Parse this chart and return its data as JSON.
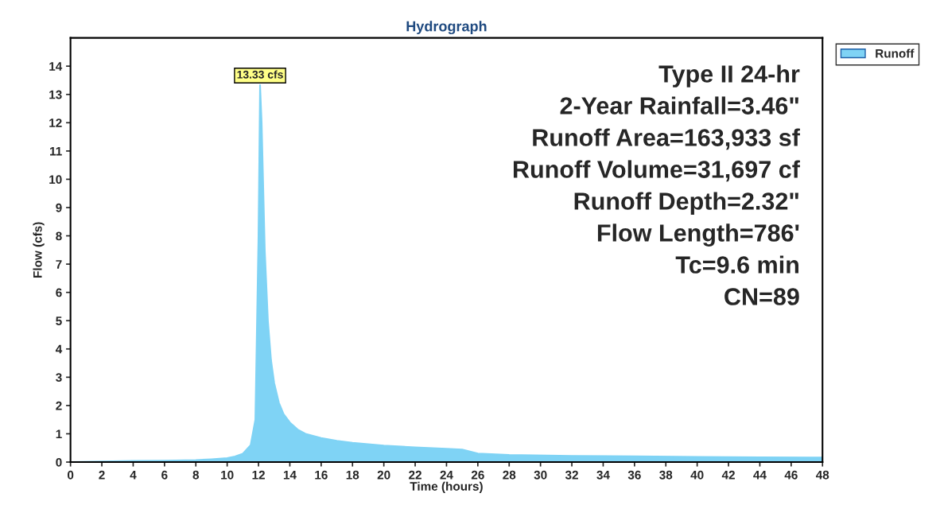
{
  "chart_data": {
    "type": "area",
    "title": "Hydrograph",
    "xlabel": "Time (hours)",
    "ylabel": "Flow (cfs)",
    "x": [
      0,
      2,
      4,
      6,
      8,
      9,
      10,
      10.5,
      11,
      11.5,
      11.8,
      12.0,
      12.1,
      12.2,
      12.4,
      12.6,
      12.8,
      13.0,
      13.3,
      13.6,
      14,
      14.5,
      15,
      16,
      17,
      18,
      20,
      22,
      24,
      25,
      26,
      28,
      32,
      36,
      40,
      44,
      48
    ],
    "series": [
      {
        "name": "Runoff",
        "color": "#7fd3f5",
        "values": [
          0.0,
          0.02,
          0.04,
          0.05,
          0.07,
          0.1,
          0.14,
          0.2,
          0.3,
          0.6,
          1.5,
          8.0,
          13.33,
          12.0,
          7.5,
          5.0,
          3.6,
          2.8,
          2.1,
          1.7,
          1.4,
          1.15,
          1.0,
          0.85,
          0.75,
          0.68,
          0.58,
          0.52,
          0.47,
          0.44,
          0.3,
          0.25,
          0.22,
          0.2,
          0.18,
          0.17,
          0.16
        ]
      }
    ],
    "xlim": [
      0,
      48
    ],
    "xticks": [
      0,
      2,
      4,
      6,
      8,
      10,
      12,
      14,
      16,
      18,
      20,
      22,
      24,
      26,
      28,
      30,
      32,
      34,
      36,
      38,
      40,
      42,
      44,
      46,
      48
    ],
    "ylim": [
      0,
      15
    ],
    "yticks": [
      0,
      1,
      2,
      3,
      4,
      5,
      6,
      7,
      8,
      9,
      10,
      11,
      12,
      13,
      14
    ],
    "grid": false,
    "legend": "top right",
    "annotations": [
      {
        "text": "13.33 cfs",
        "x": 12.1,
        "y": 13.33
      },
      "Type II 24-hr",
      "2-Year Rainfall=3.46\"",
      "Runoff Area=163,933 sf",
      "Runoff Volume=31,697 cf",
      "Runoff Depth=2.32\"",
      "Flow Length=786'",
      "Tc=9.6 min",
      "CN=89"
    ]
  }
}
